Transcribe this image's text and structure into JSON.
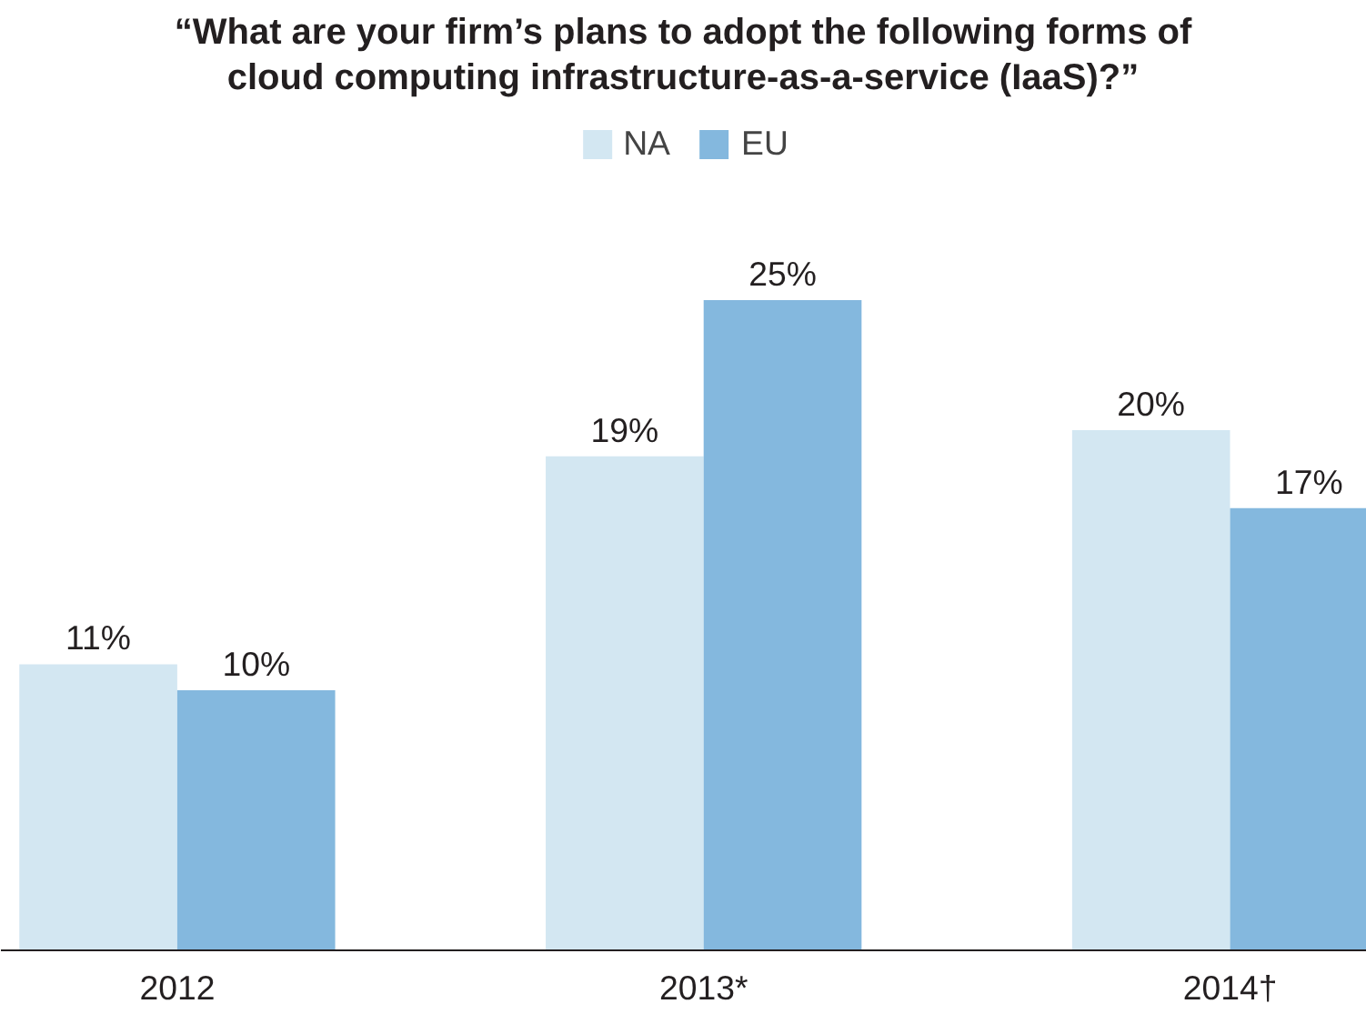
{
  "chart_data": {
    "type": "bar",
    "title": "“What are your firm’s plans to adopt the following forms of\ncloud computing infrastructure-as-a-service (IaaS)?”",
    "categories": [
      "2012",
      "2013*",
      "2014†"
    ],
    "series": [
      {
        "name": "NA",
        "color": "#d3e7f2",
        "values": [
          11,
          19,
          20
        ],
        "value_labels": [
          "11%",
          "19%",
          "20%"
        ]
      },
      {
        "name": "EU",
        "color": "#84b8de",
        "values": [
          10,
          25,
          17
        ],
        "value_labels": [
          "10%",
          "25%",
          "17%"
        ]
      }
    ],
    "legend": "top",
    "tick_labels": "x"
  }
}
